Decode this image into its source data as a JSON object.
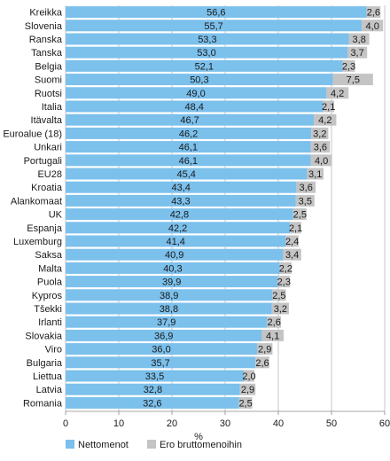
{
  "chart_data": {
    "type": "bar",
    "orientation": "horizontal",
    "stacked": true,
    "categories": [
      "Kreikka",
      "Slovenia",
      "Ranska",
      "Tanska",
      "Belgia",
      "Suomi",
      "Ruotsi",
      "Italia",
      "Itävalta",
      "Euroalue (18)",
      "Unkari",
      "Portugali",
      "EU28",
      "Kroatia",
      "Alankomaat",
      "UK",
      "Espanja",
      "Luxemburg",
      "Saksa",
      "Malta",
      "Puola",
      "Kypros",
      "Tšekki",
      "Irlanti",
      "Slovakia",
      "Viro",
      "Bulgaria",
      "Liettua",
      "Latvia",
      "Romania"
    ],
    "series": [
      {
        "name": "Nettomenot",
        "color": "#7cc0ec",
        "values": [
          56.6,
          55.7,
          53.3,
          53.0,
          52.1,
          50.3,
          49.0,
          48.4,
          46.7,
          46.2,
          46.1,
          46.1,
          45.4,
          43.4,
          43.3,
          42.8,
          42.2,
          41.4,
          40.9,
          40.3,
          39.9,
          38.9,
          38.8,
          37.9,
          36.9,
          36.0,
          35.7,
          33.5,
          32.8,
          32.6
        ],
        "labels": [
          "56,6",
          "55,7",
          "53,3",
          "53,0",
          "52,1",
          "50,3",
          "49,0",
          "48,4",
          "46,7",
          "46,2",
          "46,1",
          "46,1",
          "45,4",
          "43,4",
          "43,3",
          "42,8",
          "42,2",
          "41,4",
          "40,9",
          "40,3",
          "39,9",
          "38,9",
          "38,8",
          "37,9",
          "36,9",
          "36,0",
          "35,7",
          "33,5",
          "32,8",
          "32,6"
        ]
      },
      {
        "name": "Ero bruttomenoihin",
        "color": "#c4c4c4",
        "values": [
          2.6,
          4.0,
          3.8,
          3.7,
          2.3,
          7.5,
          4.2,
          2.1,
          4.2,
          3.2,
          3.6,
          4.0,
          3.1,
          3.6,
          3.5,
          2.5,
          2.1,
          2.4,
          3.4,
          2.2,
          2.3,
          2.5,
          3.2,
          2.6,
          4.1,
          2.9,
          2.6,
          2.0,
          2.9,
          2.5
        ],
        "labels": [
          "2,6",
          "4,0",
          "3,8",
          "3,7",
          "2,3",
          "7,5",
          "4,2",
          "2,1",
          "4,2",
          "3,2",
          "3,6",
          "4,0",
          "3,1",
          "3,6",
          "3,5",
          "2,5",
          "2,1",
          "2,4",
          "3,4",
          "2,2",
          "2,3",
          "2,5",
          "3,2",
          "2,6",
          "4,1",
          "2,9",
          "2,6",
          "2,0",
          "2,9",
          "2,5"
        ]
      }
    ],
    "xlim": [
      0,
      60
    ],
    "xticks": [
      "0",
      "10",
      "20",
      "30",
      "40",
      "50",
      "60"
    ],
    "xlabel": "%",
    "legend_position": "bottom-left"
  }
}
